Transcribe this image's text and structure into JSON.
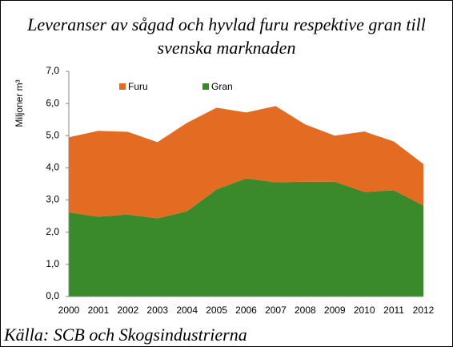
{
  "chart_data": {
    "type": "stacked_area",
    "title": "Leveranser av sågad och hyvlad furu respektive gran till svenska marknaden",
    "ylabel": "Miljoner m³",
    "source": "Källa: SCB och Skogsindustrierna",
    "categories": [
      "2000",
      "2001",
      "2002",
      "2003",
      "2004",
      "2005",
      "2006",
      "2007",
      "2008",
      "2009",
      "2010",
      "2011",
      "2012"
    ],
    "series": [
      {
        "name": "Furu",
        "color": "#e46c22",
        "values": [
          2.33,
          2.67,
          2.57,
          2.37,
          2.75,
          2.54,
          2.05,
          2.37,
          1.78,
          1.43,
          1.88,
          1.52,
          1.29
        ]
      },
      {
        "name": "Gran",
        "color": "#3a8a2c",
        "values": [
          2.62,
          2.48,
          2.55,
          2.43,
          2.65,
          3.33,
          3.67,
          3.55,
          3.57,
          3.57,
          3.25,
          3.3,
          2.83
        ]
      }
    ],
    "ylim": [
      0,
      7
    ],
    "yticks": [
      {
        "value": 0,
        "label": "0,0"
      },
      {
        "value": 1,
        "label": "1,0"
      },
      {
        "value": 2,
        "label": "2,0"
      },
      {
        "value": 3,
        "label": "3,0"
      },
      {
        "value": 4,
        "label": "4,0"
      },
      {
        "value": 5,
        "label": "5,0"
      },
      {
        "value": 6,
        "label": "6,0"
      },
      {
        "value": 7,
        "label": "7,0"
      }
    ],
    "grid": false,
    "legend": "top-left"
  }
}
